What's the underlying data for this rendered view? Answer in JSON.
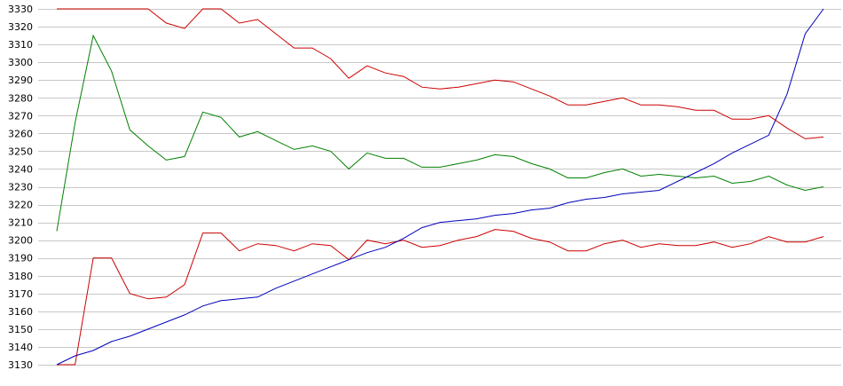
{
  "chart_data": {
    "type": "line",
    "title": "",
    "xlabel": "",
    "ylabel": "",
    "ylim": [
      3130,
      3330
    ],
    "yticks": [
      3130,
      3140,
      3150,
      3160,
      3170,
      3180,
      3190,
      3200,
      3210,
      3220,
      3230,
      3240,
      3250,
      3260,
      3270,
      3280,
      3290,
      3300,
      3310,
      3320,
      3330
    ],
    "grid": "horizontal",
    "legend": "none",
    "x": [
      0,
      1,
      2,
      3,
      4,
      5,
      6,
      7,
      8,
      9,
      10,
      11,
      12,
      13,
      14,
      15,
      16,
      17,
      18,
      19,
      20,
      21,
      22,
      23,
      24,
      25,
      26,
      27,
      28,
      29,
      30,
      31,
      32,
      33,
      34,
      35,
      36,
      37,
      38,
      39,
      40,
      41,
      42
    ],
    "series": [
      {
        "color": "#cc0000",
        "values": [
          3330,
          3330,
          3330,
          3330,
          3330,
          3330,
          3322,
          3319,
          3330,
          3330,
          3322,
          3324,
          3316,
          3308,
          3308,
          3302,
          3291,
          3298,
          3294,
          3292,
          3286,
          3285,
          3286,
          3288,
          3290,
          3289,
          3285,
          3281,
          3276,
          3276,
          3278,
          3280,
          3276,
          3276,
          3275,
          3273,
          3273,
          3268,
          3268,
          3270,
          3263,
          3257,
          3258
        ]
      },
      {
        "color": "#008000",
        "values": [
          3205,
          3266,
          3315,
          3295,
          3262,
          3253,
          3245,
          3247,
          3272,
          3269,
          3258,
          3261,
          3256,
          3251,
          3253,
          3250,
          3240,
          3249,
          3246,
          3246,
          3241,
          3241,
          3243,
          3245,
          3248,
          3247,
          3243,
          3240,
          3235,
          3235,
          3238,
          3240,
          3236,
          3237,
          3236,
          3235,
          3236,
          3232,
          3233,
          3236,
          3231,
          3228,
          3230
        ]
      },
      {
        "color": "#cc0000",
        "values": [
          3130,
          3130,
          3190,
          3190,
          3170,
          3167,
          3168,
          3175,
          3204,
          3204,
          3194,
          3198,
          3197,
          3194,
          3198,
          3197,
          3189,
          3200,
          3198,
          3200,
          3196,
          3197,
          3200,
          3202,
          3206,
          3205,
          3201,
          3199,
          3194,
          3194,
          3198,
          3200,
          3196,
          3198,
          3197,
          3197,
          3199,
          3196,
          3198,
          3202,
          3199,
          3199,
          3202
        ]
      },
      {
        "color": "#0000bb",
        "values": [
          3130,
          3135,
          3138,
          3143,
          3146,
          3150,
          3154,
          3158,
          3163,
          3166,
          3167,
          3168,
          3173,
          3177,
          3181,
          3185,
          3189,
          3193,
          3196,
          3201,
          3207,
          3210,
          3211,
          3212,
          3214,
          3215,
          3217,
          3218,
          3221,
          3223,
          3224,
          3226,
          3227,
          3228,
          3233,
          3238,
          3243,
          3249,
          3254,
          3259,
          3282,
          3316,
          3330
        ]
      }
    ]
  }
}
